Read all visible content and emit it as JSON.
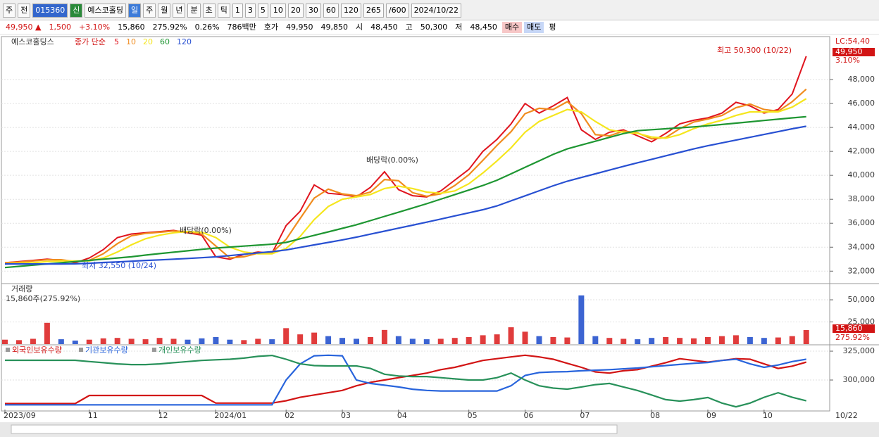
{
  "toolbar": {
    "row1": [
      "주",
      "전",
      "015360",
      "신",
      "예스코홀딩",
      "일",
      "주",
      "월",
      "년",
      "분",
      "초",
      "틱",
      "1",
      "3",
      "5",
      "10",
      "20",
      "30",
      "60",
      "120",
      "265",
      "/600",
      "2024/10/22"
    ],
    "row2": [
      "49,950 ▲",
      "1,500",
      "+3.10%",
      "15,860",
      "275.92%",
      "0.26%",
      "786백만",
      "호가",
      "49,950",
      "49,850",
      "시",
      "48,450",
      "고",
      "50,300",
      "저",
      "48,450",
      "매수",
      "매도",
      "평"
    ]
  },
  "chart_data": [
    {
      "type": "line",
      "title": "예스코홀딩스",
      "subtitle": "종가 단순",
      "series": [
        {
          "name": "5",
          "color": "#e0141e",
          "values": [
            32700,
            32800,
            32900,
            33000,
            32900,
            32700,
            33100,
            33800,
            34800,
            35100,
            35200,
            35300,
            35400,
            35200,
            35000,
            33200,
            33000,
            33400,
            33600,
            33500,
            35800,
            37000,
            39200,
            38500,
            38400,
            38200,
            39000,
            40300,
            38800,
            38300,
            38200,
            38700,
            39600,
            40500,
            42000,
            43000,
            44300,
            46000,
            45200,
            45800,
            46500,
            43800,
            43000,
            43600,
            43800,
            43300,
            42800,
            43500,
            44300,
            44600,
            44800,
            45200,
            46100,
            45800,
            45200,
            45500,
            46800,
            49950
          ]
        },
        {
          "name": "10",
          "color": "#f08c1e",
          "values": [
            32700,
            32750,
            32850,
            32950,
            32950,
            32800,
            32900,
            33450,
            34300,
            34950,
            35150,
            35250,
            35350,
            35300,
            35100,
            34100,
            33100,
            33200,
            33500,
            33550,
            34650,
            36400,
            38100,
            38850,
            38450,
            38300,
            38600,
            39650,
            39550,
            38550,
            38250,
            38450,
            39150,
            40050,
            41250,
            42500,
            43650,
            45150,
            45600,
            45500,
            46150,
            45150,
            43400,
            43300,
            43700,
            43550,
            43050,
            43150,
            43900,
            44450,
            44700,
            45000,
            45650,
            45950,
            45500,
            45350,
            46150,
            47200
          ]
        },
        {
          "name": "20",
          "color": "#f5e61e",
          "values": [
            32600,
            32650,
            32700,
            32800,
            32850,
            32850,
            32850,
            33100,
            33600,
            34200,
            34700,
            35000,
            35200,
            35300,
            35250,
            34800,
            34000,
            33600,
            33450,
            33450,
            33900,
            34900,
            36300,
            37400,
            38000,
            38200,
            38400,
            38900,
            39100,
            38900,
            38600,
            38500,
            38700,
            39300,
            40200,
            41200,
            42300,
            43600,
            44500,
            45000,
            45500,
            45300,
            44500,
            43800,
            43600,
            43500,
            43200,
            43100,
            43400,
            43900,
            44300,
            44600,
            45000,
            45300,
            45300,
            45300,
            45700,
            46400
          ]
        },
        {
          "name": "60",
          "color": "#1e9632",
          "values": [
            32300,
            32400,
            32500,
            32600,
            32700,
            32800,
            32900,
            33000,
            33100,
            33200,
            33340,
            33460,
            33580,
            33700,
            33820,
            33930,
            34010,
            34090,
            34170,
            34250,
            34400,
            34700,
            34990,
            35280,
            35570,
            35870,
            36220,
            36570,
            36920,
            37270,
            37630,
            38010,
            38390,
            38770,
            39150,
            39590,
            40130,
            40670,
            41210,
            41750,
            42210,
            42530,
            42850,
            43170,
            43490,
            43730,
            43810,
            43890,
            43970,
            44050,
            44140,
            44250,
            44360,
            44470,
            44580,
            44690,
            44800,
            44900
          ]
        },
        {
          "name": "120",
          "color": "#2850d2",
          "values": [
            32600,
            32600,
            32600,
            32600,
            32600,
            32610,
            32660,
            32720,
            32770,
            32830,
            32890,
            32940,
            33000,
            33060,
            33120,
            33190,
            33300,
            33410,
            33520,
            33630,
            33770,
            33980,
            34190,
            34400,
            34610,
            34840,
            35090,
            35340,
            35590,
            35840,
            36090,
            36350,
            36610,
            36870,
            37130,
            37450,
            37870,
            38290,
            38710,
            39130,
            39510,
            39820,
            40130,
            40440,
            40750,
            41050,
            41340,
            41630,
            41920,
            42210,
            42470,
            42710,
            42940,
            43180,
            43410,
            43650,
            43890,
            44100
          ]
        }
      ],
      "ylim": [
        31018,
        51235
      ],
      "yticks": [
        {
          "value": 32000,
          "label": "32,000"
        },
        {
          "value": 34000,
          "label": "34,000"
        },
        {
          "value": 36000,
          "label": "36,000"
        },
        {
          "value": 38000,
          "label": "38,000"
        },
        {
          "value": 40000,
          "label": "40,000"
        },
        {
          "value": 42000,
          "label": "42,000"
        },
        {
          "value": 44000,
          "label": "44,000"
        },
        {
          "value": 46000,
          "label": "46,000"
        },
        {
          "value": 48000,
          "label": "48,000"
        }
      ],
      "annotations": [
        "최고 50,300 (10/22)",
        "최저 32,550 (10/24)",
        "배당락(0.00%)",
        "배당락(0.00%)"
      ],
      "right_labels": [
        "LC:54,40",
        "49,950",
        "3.10%"
      ]
    },
    {
      "type": "bar",
      "title": "거래량",
      "subtitle": "15,860주(275.92%)",
      "values": [
        5000,
        4500,
        6000,
        24000,
        5500,
        4000,
        5000,
        6500,
        7000,
        6000,
        5500,
        7000,
        6000,
        5000,
        6500,
        8000,
        5000,
        4500,
        6000,
        5500,
        18000,
        11000,
        13000,
        9000,
        7000,
        6000,
        8000,
        16000,
        9000,
        6000,
        5500,
        6000,
        7000,
        8000,
        10000,
        11000,
        19000,
        14000,
        9000,
        8000,
        7500,
        55000,
        9000,
        7000,
        6000,
        5500,
        7000,
        8000,
        7000,
        6500,
        8000,
        9000,
        10000,
        8000,
        7000,
        7500,
        9000,
        15860
      ],
      "ylim": [
        0,
        67500
      ],
      "yticks": [
        {
          "value": 25000,
          "label": "25,000"
        },
        {
          "value": 50000,
          "label": "50,000"
        }
      ],
      "right_labels": [
        "15,860",
        "275.92%"
      ]
    },
    {
      "type": "line",
      "series": [
        {
          "name": "외국인보유수량",
          "color": "#d21414",
          "values": [
            279600,
            279600,
            279600,
            279600,
            279600,
            279600,
            286600,
            286600,
            286600,
            286600,
            286600,
            286600,
            286600,
            286600,
            286600,
            280000,
            280000,
            280000,
            280000,
            280000,
            282000,
            285000,
            287000,
            289000,
            291000,
            295000,
            298000,
            300000,
            302000,
            304000,
            306000,
            309000,
            311000,
            314000,
            317000,
            318500,
            320000,
            321500,
            320000,
            318000,
            314500,
            311000,
            307000,
            306000,
            308000,
            309000,
            312000,
            315000,
            318500,
            317000,
            315500,
            317000,
            318500,
            318000,
            314000,
            310000,
            312000,
            315500
          ]
        },
        {
          "name": "기관보유수량",
          "color": "#2864dc",
          "values": [
            278500,
            278500,
            278500,
            278500,
            278500,
            278500,
            278500,
            278500,
            278500,
            278500,
            278500,
            278500,
            278500,
            278500,
            278500,
            278500,
            278500,
            278500,
            278500,
            278500,
            300000,
            314000,
            321000,
            321500,
            321000,
            300000,
            297000,
            295500,
            294000,
            292000,
            291000,
            290500,
            290500,
            290500,
            290500,
            290500,
            295000,
            304000,
            306500,
            307000,
            307300,
            308000,
            308500,
            309000,
            309700,
            310400,
            311500,
            312500,
            313500,
            314500,
            315200,
            317000,
            318000,
            314000,
            311000,
            313000,
            316000,
            318000
          ]
        },
        {
          "name": "개인보유수량",
          "color": "#28915a",
          "values": [
            317100,
            317100,
            317100,
            317100,
            317100,
            317100,
            316000,
            315000,
            314000,
            313400,
            313400,
            314000,
            315000,
            316000,
            317000,
            317500,
            318000,
            319000,
            320500,
            321300,
            318000,
            314000,
            312500,
            312200,
            312200,
            312200,
            310000,
            305000,
            303500,
            303000,
            303000,
            302000,
            301000,
            300000,
            300000,
            302000,
            306000,
            300000,
            295000,
            293000,
            292100,
            294000,
            296000,
            297000,
            294000,
            290900,
            287000,
            283000,
            281700,
            283000,
            284800,
            280000,
            276800,
            280000,
            285000,
            289000,
            285000,
            282000
          ]
        }
      ],
      "ylim": [
        274400,
        329900
      ],
      "yticks": [
        {
          "value": 300000,
          "label": "300,000"
        },
        {
          "value": 325000,
          "label": "325,000"
        }
      ],
      "categories": [
        "2023/09",
        null,
        null,
        null,
        null,
        null,
        "11",
        null,
        null,
        null,
        null,
        "12",
        null,
        null,
        null,
        "2024/01",
        null,
        null,
        null,
        null,
        "02",
        null,
        null,
        null,
        "03",
        null,
        null,
        null,
        "04",
        null,
        null,
        null,
        null,
        "05",
        null,
        null,
        null,
        "06",
        null,
        null,
        null,
        "07",
        null,
        null,
        null,
        null,
        "08",
        null,
        null,
        null,
        "09",
        null,
        null,
        null,
        "10",
        null,
        null,
        null
      ],
      "current_label": "10/22"
    }
  ]
}
